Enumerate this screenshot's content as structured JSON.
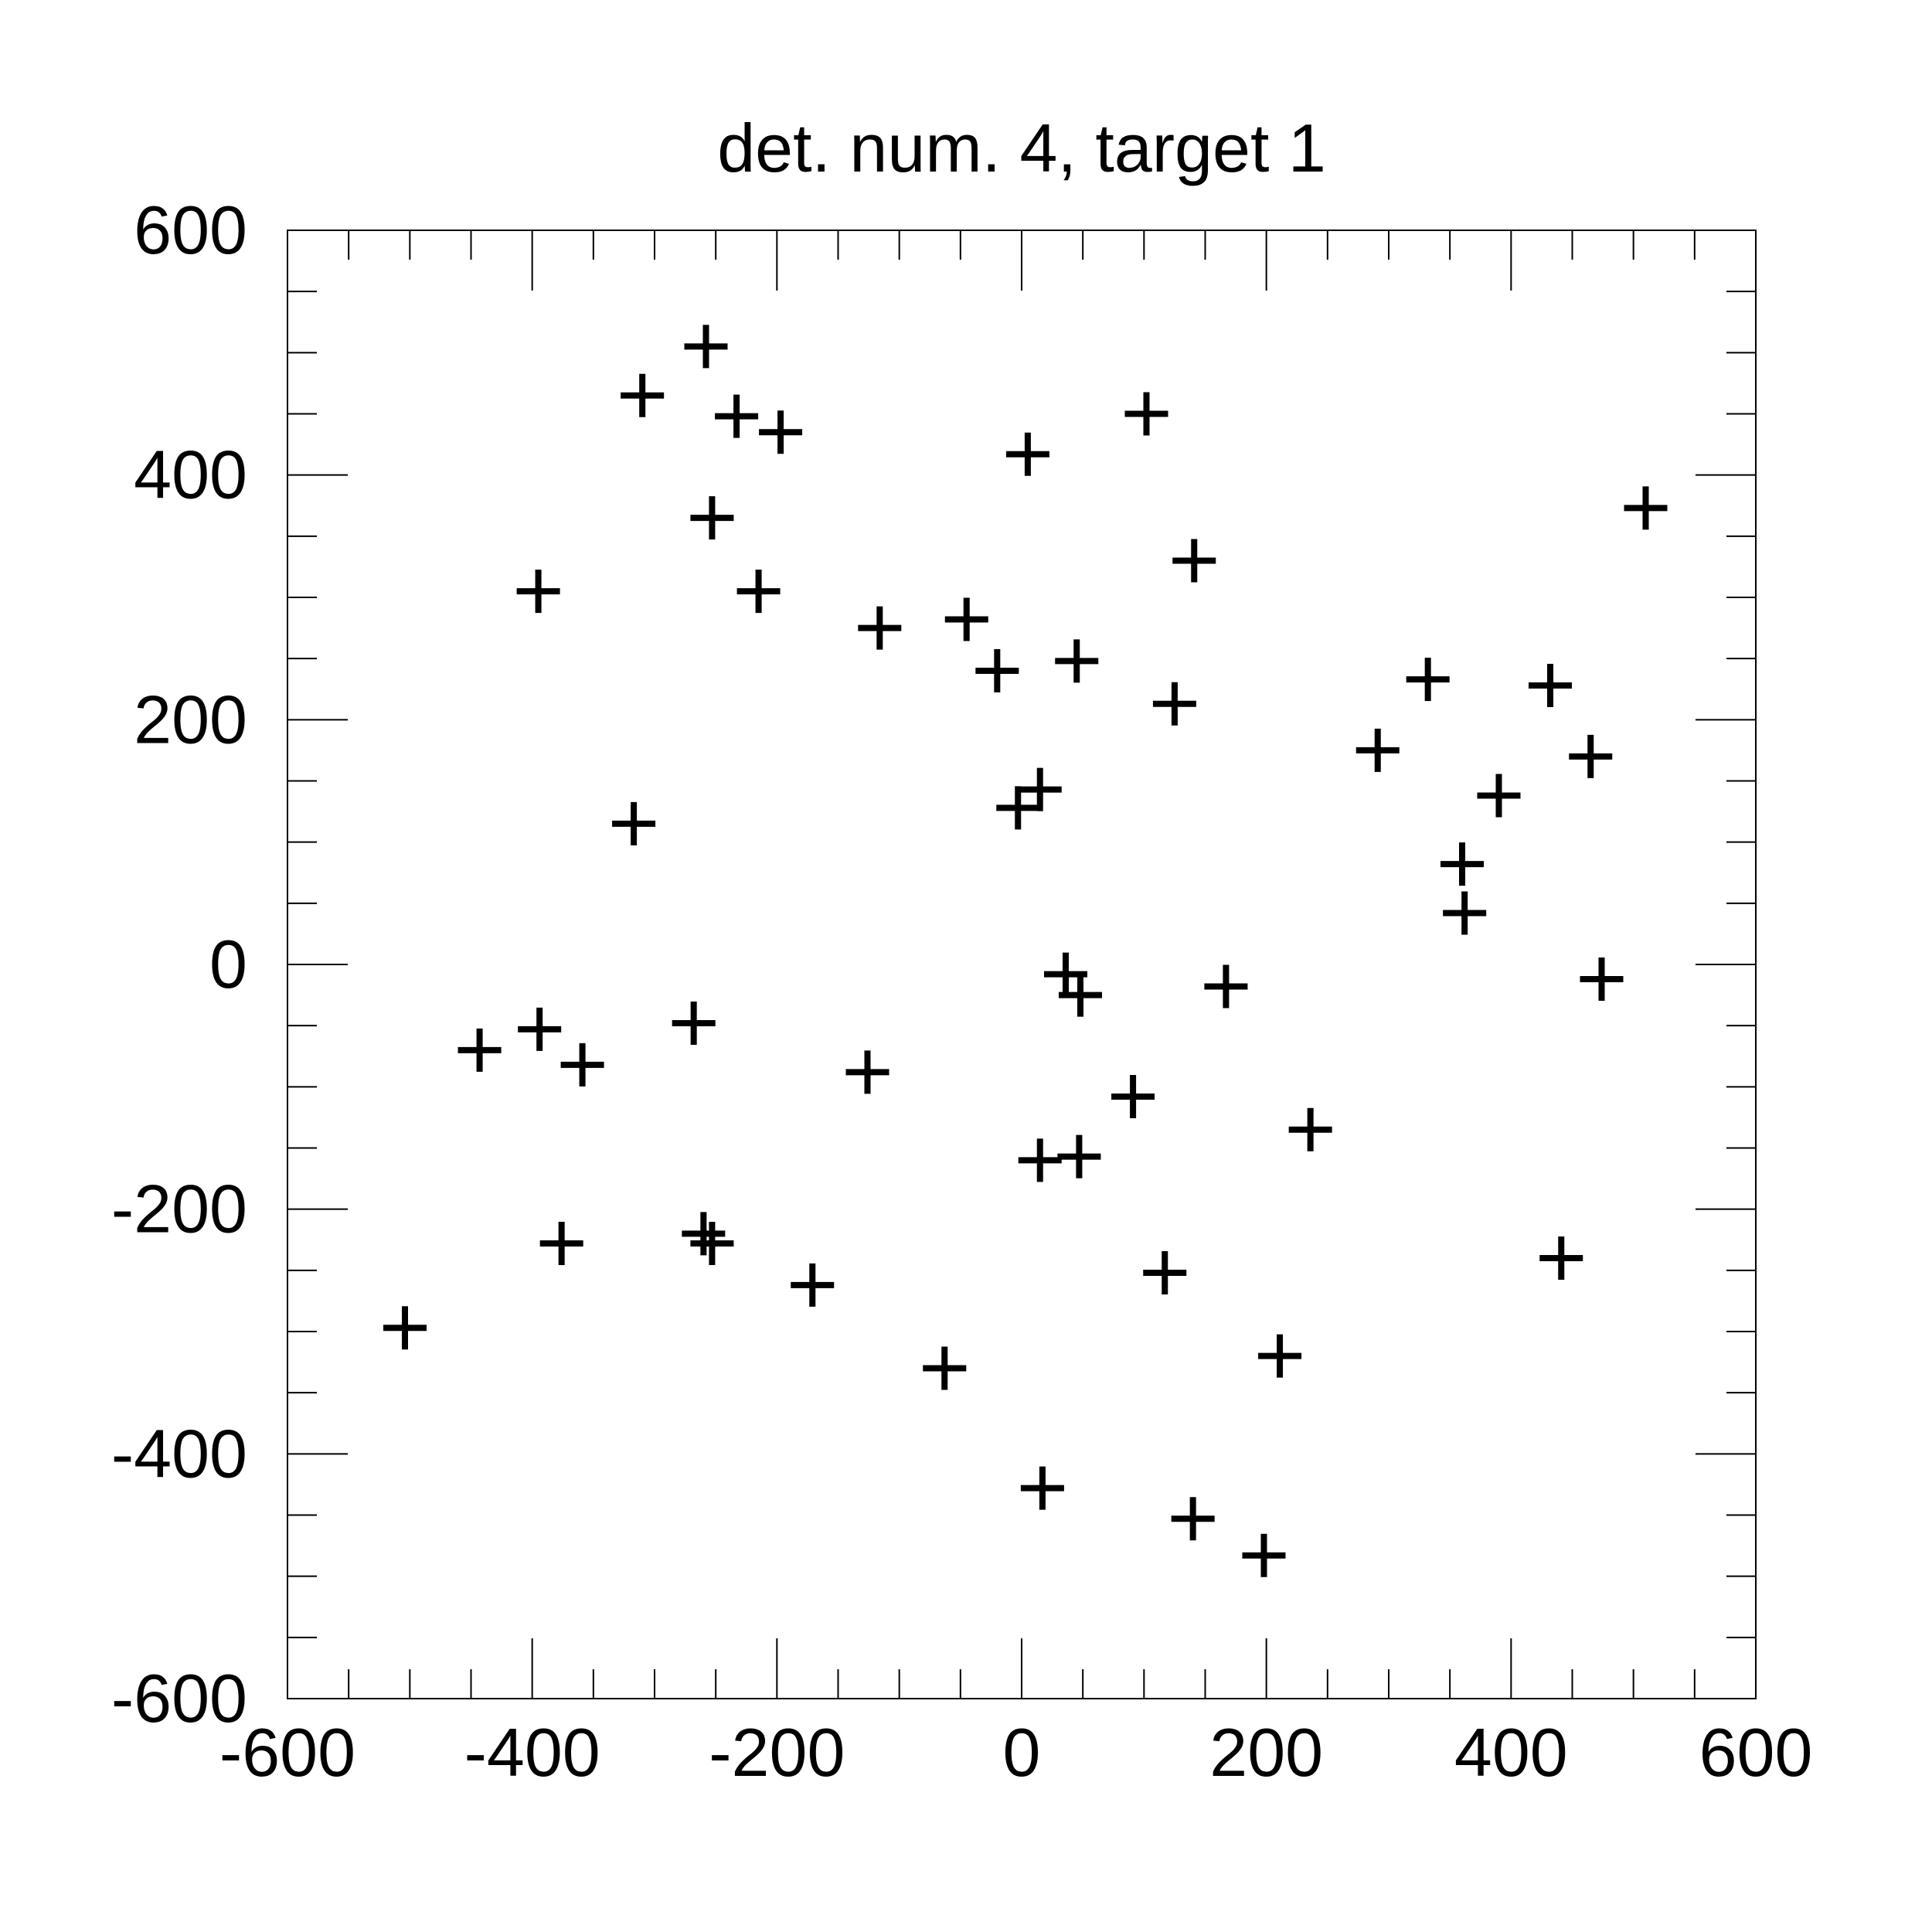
{
  "chart_data": {
    "type": "scatter",
    "title": "det. num. 4, target 1",
    "xlabel": "",
    "ylabel": "",
    "xlim": [
      -600,
      600
    ],
    "ylim": [
      -600,
      600
    ],
    "x_ticks": [
      -600,
      -400,
      -200,
      0,
      200,
      400,
      600
    ],
    "y_ticks": [
      -600,
      -400,
      -200,
      0,
      200,
      400,
      600
    ],
    "x_tick_labels": [
      "-600",
      "-400",
      "-200",
      "0",
      "200",
      "400",
      "600"
    ],
    "y_tick_labels": [
      "-600",
      "-400",
      "-200",
      "0",
      "200",
      "400",
      "600"
    ],
    "grid": false,
    "marker": "plus",
    "color": "#000000",
    "points": [
      [
        -258,
        505
      ],
      [
        -310,
        465
      ],
      [
        -233,
        448
      ],
      [
        -197,
        435
      ],
      [
        -253,
        365
      ],
      [
        -395,
        305
      ],
      [
        -215,
        305
      ],
      [
        -116,
        275
      ],
      [
        -45,
        282
      ],
      [
        -20,
        240
      ],
      [
        5,
        417
      ],
      [
        102,
        450
      ],
      [
        141,
        330
      ],
      [
        45,
        248
      ],
      [
        125,
        213
      ],
      [
        510,
        373
      ],
      [
        332,
        233
      ],
      [
        432,
        228
      ],
      [
        291,
        175
      ],
      [
        465,
        170
      ],
      [
        390,
        138
      ],
      [
        360,
        82
      ],
      [
        362,
        42
      ],
      [
        15,
        143
      ],
      [
        -3,
        128
      ],
      [
        -317,
        115
      ],
      [
        36,
        -8
      ],
      [
        48,
        -25
      ],
      [
        167,
        -18
      ],
      [
        474,
        -12
      ],
      [
        -443,
        -70
      ],
      [
        -394,
        -53
      ],
      [
        -359,
        -82
      ],
      [
        -268,
        -48
      ],
      [
        -126,
        -88
      ],
      [
        91,
        -108
      ],
      [
        236,
        -135
      ],
      [
        15,
        -160
      ],
      [
        47,
        -157
      ],
      [
        -376,
        -228
      ],
      [
        -260,
        -220
      ],
      [
        -253,
        -228
      ],
      [
        -171,
        -262
      ],
      [
        117,
        -252
      ],
      [
        441,
        -240
      ],
      [
        -504,
        -297
      ],
      [
        -63,
        -330
      ],
      [
        211,
        -320
      ],
      [
        17,
        -428
      ],
      [
        140,
        -453
      ],
      [
        198,
        -483
      ]
    ]
  }
}
